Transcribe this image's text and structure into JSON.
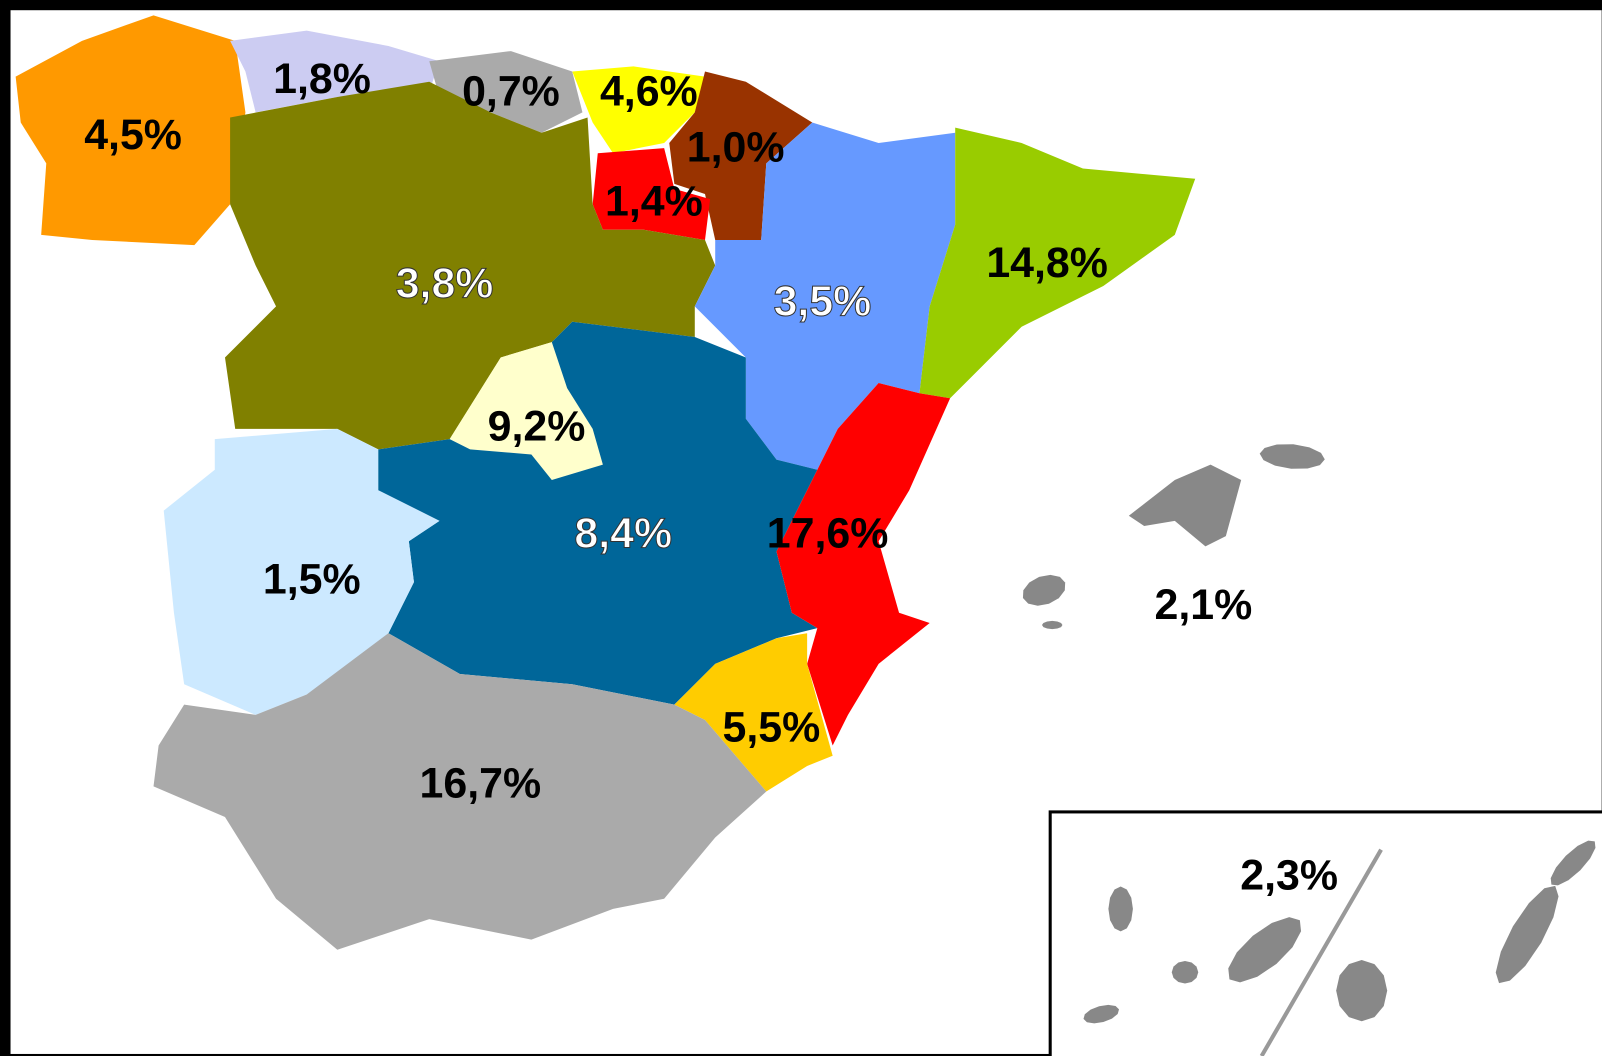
{
  "regions": [
    {
      "label": "4,5%",
      "color": "#ff9900"
    },
    {
      "label": "1,8%",
      "color": "#ccccf2"
    },
    {
      "label": "0,7%",
      "color": "#aaaaaa"
    },
    {
      "label": "4,6%",
      "color": "#ffff00"
    },
    {
      "label": "1,0%",
      "color": "#993300"
    },
    {
      "label": "1,4%",
      "color": "#ff0000"
    },
    {
      "label": "3,8%",
      "color": "#808000"
    },
    {
      "label": "3,5%",
      "color": "#6699ff"
    },
    {
      "label": "14,8%",
      "color": "#99cc00"
    },
    {
      "label": "9,2%",
      "color": "#ffffcc"
    },
    {
      "label": "8,4%",
      "color": "#006699"
    },
    {
      "label": "17,6%",
      "color": "#ff0000"
    },
    {
      "label": "5,5%",
      "color": "#ffcc00"
    },
    {
      "label": "1,5%",
      "color": "#cce9ff"
    },
    {
      "label": "16,7%",
      "color": "#aaaaaa"
    },
    {
      "label": "2,1%",
      "color": "#888888"
    },
    {
      "label": "2,3%",
      "color": "#888888"
    }
  ]
}
